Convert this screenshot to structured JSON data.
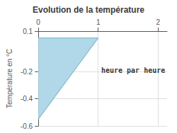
{
  "chart_data": {
    "type": "area",
    "title": "Evolution de la température",
    "ylabel": "Température en °C",
    "series": [
      {
        "type": "area",
        "color": "#b0d8e8",
        "x": [
          0,
          0,
          1
        ],
        "values": [
          -0.55,
          0.05,
          0.05
        ]
      },
      {
        "type": "line",
        "color": "#88bbcc",
        "x": [
          0,
          1
        ],
        "values": [
          -0.55,
          0.05
        ]
      },
      {
        "type": "line",
        "color": "#88bbcc",
        "x": [
          0,
          1
        ],
        "values": [
          0.05,
          0.05
        ]
      }
    ],
    "annotations": [
      {
        "text": "heure par heure",
        "x": 1.05,
        "y": -0.19
      }
    ],
    "xlim": [
      0,
      2.15
    ],
    "ylim": [
      -0.6,
      0.1
    ],
    "xticks": [
      0,
      1,
      2
    ],
    "yticks": [
      -0.6,
      -0.4,
      -0.2,
      0.1
    ],
    "grid": true
  }
}
